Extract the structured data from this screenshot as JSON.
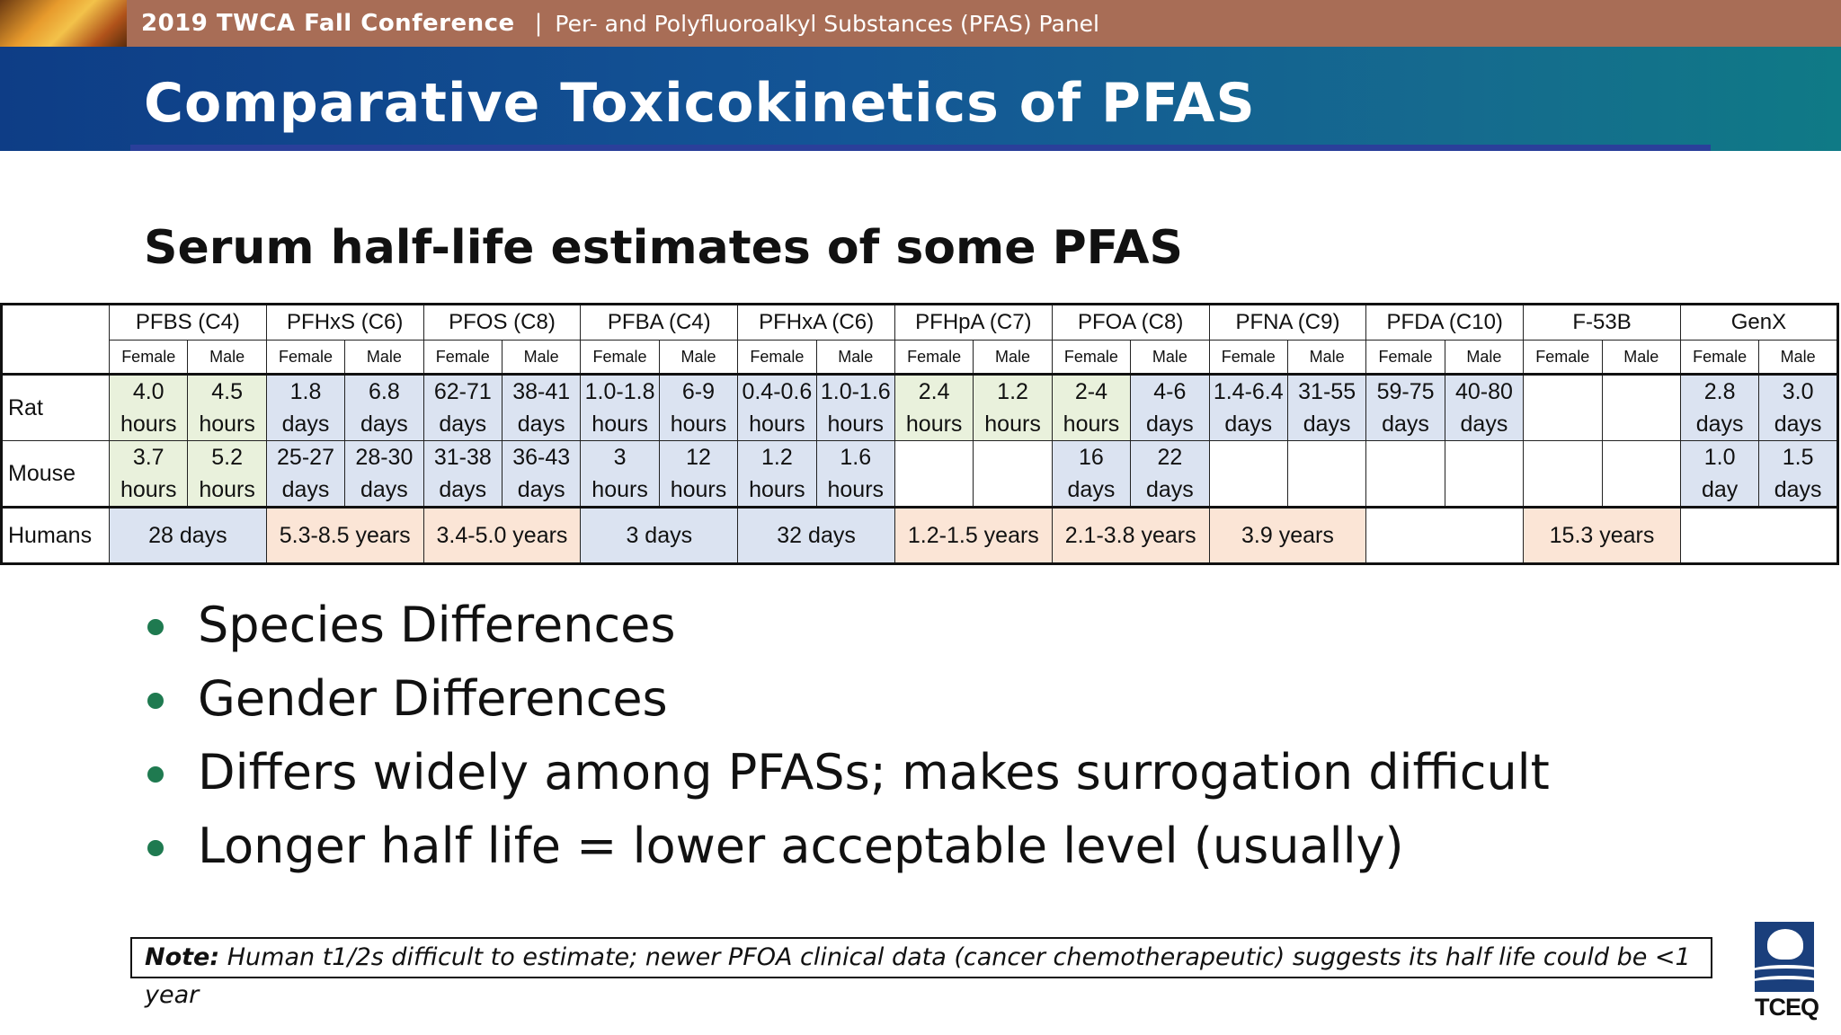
{
  "header": {
    "conference": "2019 TWCA Fall Conference",
    "separator": "|",
    "panel": "Per- and Polyfluoroalkyl Substances (PFAS) Panel"
  },
  "slide": {
    "title": "Comparative Toxicokinetics of PFAS",
    "subtitle": "Serum half-life estimates of some PFAS"
  },
  "table": {
    "compounds": [
      "PFBS (C4)",
      "PFHxS (C6)",
      "PFOS (C8)",
      "PFBA (C4)",
      "PFHxA (C6)",
      "PFHpA (C7)",
      "PFOA (C8)",
      "PFNA (C9)",
      "PFDA (C10)",
      "F-53B",
      "GenX"
    ],
    "sex_labels": {
      "female": "Female",
      "male": "Male"
    },
    "species": {
      "rat": "Rat",
      "mouse": "Mouse",
      "humans": "Humans"
    },
    "rat": [
      "4.0\nhours",
      "4.5\nhours",
      "1.8\ndays",
      "6.8\ndays",
      "62-71\ndays",
      "38-41\ndays",
      "1.0-1.8\nhours",
      "6-9\nhours",
      "0.4-0.6\nhours",
      "1.0-1.6\nhours",
      "2.4\nhours",
      "1.2\nhours",
      "2-4\nhours",
      "4-6\ndays",
      "1.4-6.4\ndays",
      "31-55\ndays",
      "59-75\ndays",
      "40-80\ndays",
      "",
      "",
      "2.8\ndays",
      "3.0\ndays"
    ],
    "mouse": [
      "3.7\nhours",
      "5.2\nhours",
      "25-27\ndays",
      "28-30\ndays",
      "31-38\ndays",
      "36-43\ndays",
      "3\nhours",
      "12\nhours",
      "1.2\nhours",
      "1.6\nhours",
      "",
      "",
      "16\ndays",
      "22\ndays",
      "",
      "",
      "",
      "",
      "",
      "",
      "1.0\nday",
      "1.5\ndays"
    ],
    "humans": [
      "28 days",
      "5.3-8.5 years",
      "3.4-5.0 years",
      "3 days",
      "32 days",
      "1.2-1.5 years",
      "2.1-3.8 years",
      "3.9 years",
      "",
      "15.3 years",
      ""
    ]
  },
  "bullets": [
    "Species Differences",
    "Gender Differences",
    "Differs widely among PFASs; makes surrogation difficult",
    "Longer half life = lower acceptable level (usually)"
  ],
  "note": {
    "label": "Note:",
    "text": " Human t1/2s difficult to estimate; newer PFOA clinical data (cancer chemotherapeutic) suggests its half life could be <1 year"
  },
  "logo": {
    "text": "TCEQ"
  },
  "colors": {
    "topbar": "#a86d56",
    "titlebar_start": "#0e3d86",
    "titlebar_end": "#0f7a86",
    "green_cell": "#e9f1dc",
    "blue_cell": "#dbe3f1",
    "orange_cell": "#fbe5d6",
    "bullet": "#1f7a50"
  }
}
